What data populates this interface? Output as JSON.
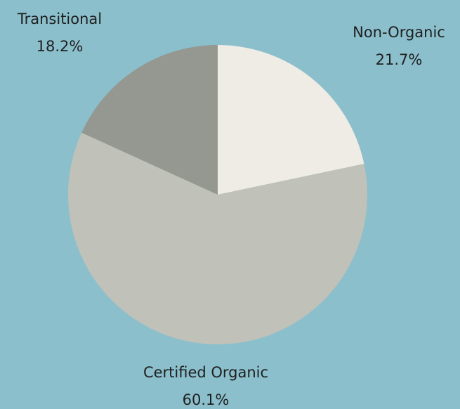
{
  "chart_data": {
    "type": "pie",
    "categories": [
      "Non-Organic",
      "Certified Organic",
      "Transitional"
    ],
    "values": [
      21.7,
      60.1,
      18.2
    ],
    "value_labels": [
      "21.7%",
      "60.1%",
      "18.2%"
    ],
    "colors": [
      "#efebe5",
      "#c0c1b9",
      "#949890"
    ]
  }
}
